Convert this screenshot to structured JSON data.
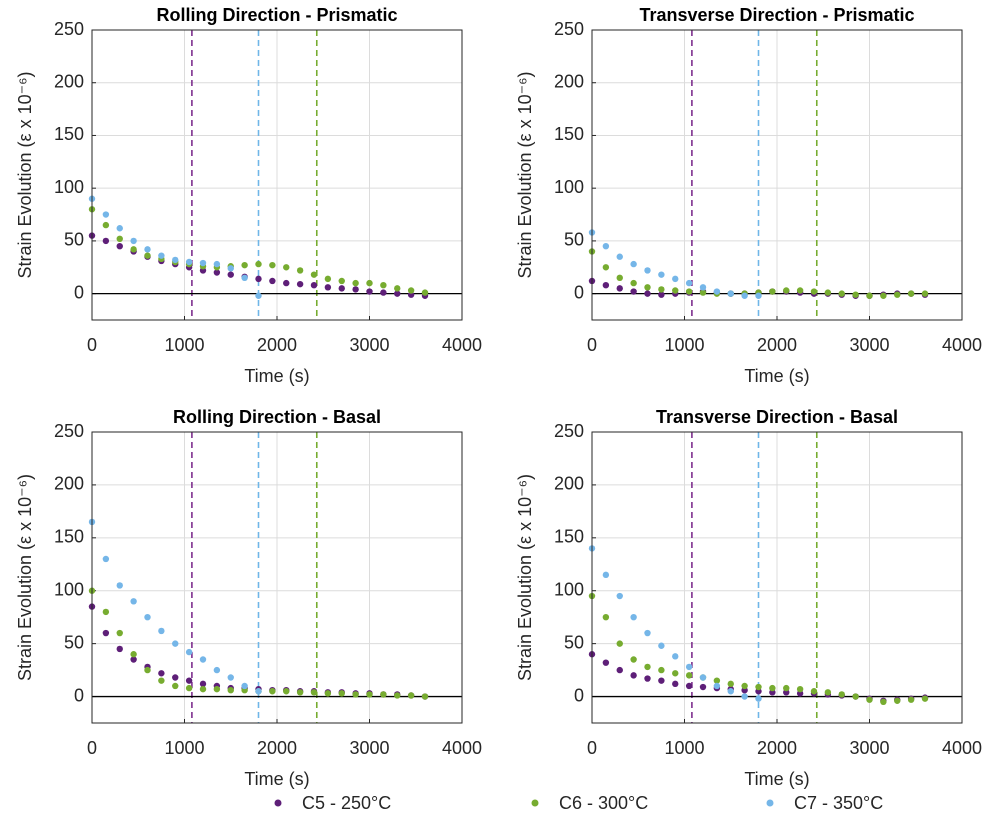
{
  "chart_data": [
    {
      "type": "scatter",
      "title": "Rolling Direction - Prismatic",
      "xlabel": "Time (s)",
      "ylabel": "Strain Evolution (ε x 10⁻⁶)",
      "xlim": [
        0,
        4000
      ],
      "xticks": [
        0,
        1000,
        2000,
        3000,
        4000
      ],
      "ylim": [
        -25,
        250
      ],
      "yticks": [
        0,
        50,
        100,
        150,
        200,
        250
      ],
      "grid": true,
      "hline": 0,
      "vlines": [
        {
          "x": 1080,
          "color": "#7e2f8e"
        },
        {
          "x": 1800,
          "color": "#6fb6e8"
        },
        {
          "x": 2430,
          "color": "#77ac30"
        }
      ],
      "series": [
        {
          "color": "#5e1f78",
          "x": [
            0,
            150,
            300,
            450,
            600,
            750,
            900,
            1050,
            1200,
            1350,
            1500,
            1650,
            1800,
            1950,
            2100,
            2250,
            2400,
            2550,
            2700,
            2850,
            3000,
            3150,
            3300,
            3450,
            3600
          ],
          "values": [
            55,
            50,
            45,
            40,
            35,
            31,
            28,
            25,
            22,
            20,
            18,
            16,
            14,
            12,
            10,
            9,
            8,
            6,
            5,
            4,
            2,
            1,
            0,
            -1,
            -2
          ]
        },
        {
          "color": "#77ac30",
          "x": [
            0,
            150,
            300,
            450,
            600,
            750,
            900,
            1050,
            1200,
            1350,
            1500,
            1650,
            1800,
            1950,
            2100,
            2250,
            2400,
            2550,
            2700,
            2850,
            3000,
            3150,
            3300,
            3450,
            3600
          ],
          "values": [
            80,
            65,
            52,
            42,
            36,
            33,
            30,
            28,
            26,
            25,
            26,
            27,
            28,
            27,
            25,
            22,
            18,
            14,
            12,
            10,
            10,
            8,
            5,
            3,
            1
          ]
        },
        {
          "color": "#75b6e8",
          "x": [
            0,
            150,
            300,
            450,
            600,
            750,
            900,
            1050,
            1200,
            1350,
            1500,
            1650,
            1800
          ],
          "values": [
            90,
            75,
            62,
            50,
            42,
            36,
            32,
            30,
            29,
            28,
            24,
            15,
            -2
          ]
        }
      ]
    },
    {
      "type": "scatter",
      "title": "Transverse Direction - Prismatic",
      "xlabel": "Time (s)",
      "ylabel": "Strain Evolution (ε x 10⁻⁶)",
      "xlim": [
        0,
        4000
      ],
      "xticks": [
        0,
        1000,
        2000,
        3000,
        4000
      ],
      "ylim": [
        -25,
        250
      ],
      "yticks": [
        0,
        50,
        100,
        150,
        200,
        250
      ],
      "grid": true,
      "hline": 0,
      "vlines": [
        {
          "x": 1080,
          "color": "#7e2f8e"
        },
        {
          "x": 1800,
          "color": "#6fb6e8"
        },
        {
          "x": 2430,
          "color": "#77ac30"
        }
      ],
      "series": [
        {
          "color": "#5e1f78",
          "x": [
            0,
            150,
            300,
            450,
            600,
            750,
            900,
            1050,
            1200,
            1350,
            1500,
            1650,
            1800,
            1950,
            2100,
            2250,
            2400,
            2550,
            2700,
            2850,
            3000,
            3150,
            3300,
            3450,
            3600
          ],
          "values": [
            12,
            8,
            5,
            2,
            0,
            -1,
            0,
            1,
            2,
            1,
            0,
            0,
            1,
            2,
            2,
            1,
            0,
            0,
            -1,
            -2,
            -2,
            -1,
            0,
            0,
            -1
          ]
        },
        {
          "color": "#77ac30",
          "x": [
            0,
            150,
            300,
            450,
            600,
            750,
            900,
            1050,
            1200,
            1350,
            1500,
            1650,
            1800,
            1950,
            2100,
            2250,
            2400,
            2550,
            2700,
            2850,
            3000,
            3150,
            3300,
            3450,
            3600
          ],
          "values": [
            40,
            25,
            15,
            10,
            6,
            4,
            3,
            2,
            1,
            0,
            0,
            0,
            1,
            2,
            3,
            3,
            2,
            1,
            0,
            -1,
            -2,
            -2,
            -1,
            0,
            0
          ]
        },
        {
          "color": "#75b6e8",
          "x": [
            0,
            150,
            300,
            450,
            600,
            750,
            900,
            1050,
            1200,
            1350,
            1500,
            1650,
            1800
          ],
          "values": [
            58,
            45,
            35,
            28,
            22,
            18,
            14,
            10,
            6,
            2,
            0,
            -2,
            -2
          ]
        }
      ]
    },
    {
      "type": "scatter",
      "title": "Rolling Direction - Basal",
      "xlabel": "Time (s)",
      "ylabel": "Strain Evolution (ε x 10⁻⁶)",
      "xlim": [
        0,
        4000
      ],
      "xticks": [
        0,
        1000,
        2000,
        3000,
        4000
      ],
      "ylim": [
        -25,
        250
      ],
      "yticks": [
        0,
        50,
        100,
        150,
        200,
        250
      ],
      "grid": true,
      "hline": 0,
      "vlines": [
        {
          "x": 1080,
          "color": "#7e2f8e"
        },
        {
          "x": 1800,
          "color": "#6fb6e8"
        },
        {
          "x": 2430,
          "color": "#77ac30"
        }
      ],
      "series": [
        {
          "color": "#5e1f78",
          "x": [
            0,
            150,
            300,
            450,
            600,
            750,
            900,
            1050,
            1200,
            1350,
            1500,
            1650,
            1800,
            1950,
            2100,
            2250,
            2400,
            2550,
            2700,
            2850,
            3000,
            3150,
            3300,
            3450,
            3600
          ],
          "values": [
            85,
            60,
            45,
            35,
            28,
            22,
            18,
            15,
            12,
            10,
            8,
            8,
            7,
            6,
            6,
            5,
            5,
            4,
            4,
            3,
            3,
            2,
            2,
            1,
            0
          ]
        },
        {
          "color": "#77ac30",
          "x": [
            0,
            150,
            300,
            450,
            600,
            750,
            900,
            1050,
            1200,
            1350,
            1500,
            1650,
            1800,
            1950,
            2100,
            2250,
            2400,
            2550,
            2700,
            2850,
            3000,
            3150,
            3300,
            3450,
            3600
          ],
          "values": [
            100,
            80,
            60,
            40,
            25,
            15,
            10,
            8,
            7,
            7,
            6,
            6,
            5,
            5,
            5,
            4,
            4,
            3,
            3,
            2,
            2,
            2,
            1,
            1,
            0
          ]
        },
        {
          "color": "#75b6e8",
          "x": [
            0,
            150,
            300,
            450,
            600,
            750,
            900,
            1050,
            1200,
            1350,
            1500,
            1650,
            1800
          ],
          "values": [
            165,
            130,
            105,
            90,
            75,
            62,
            50,
            42,
            35,
            25,
            18,
            10,
            5
          ]
        }
      ]
    },
    {
      "type": "scatter",
      "title": "Transverse Direction - Basal",
      "xlabel": "Time (s)",
      "ylabel": "Strain Evolution (ε x 10⁻⁶)",
      "xlim": [
        0,
        4000
      ],
      "xticks": [
        0,
        1000,
        2000,
        3000,
        4000
      ],
      "ylim": [
        -25,
        250
      ],
      "yticks": [
        0,
        50,
        100,
        150,
        200,
        250
      ],
      "grid": true,
      "hline": 0,
      "vlines": [
        {
          "x": 1080,
          "color": "#7e2f8e"
        },
        {
          "x": 1800,
          "color": "#6fb6e8"
        },
        {
          "x": 2430,
          "color": "#77ac30"
        }
      ],
      "series": [
        {
          "color": "#5e1f78",
          "x": [
            0,
            150,
            300,
            450,
            600,
            750,
            900,
            1050,
            1200,
            1350,
            1500,
            1650,
            1800,
            1950,
            2100,
            2250,
            2400,
            2550,
            2700,
            2850,
            3000,
            3150,
            3300,
            3450,
            3600
          ],
          "values": [
            40,
            32,
            25,
            20,
            17,
            15,
            12,
            10,
            9,
            8,
            7,
            6,
            5,
            4,
            4,
            3,
            3,
            2,
            1,
            0,
            -2,
            -4,
            -3,
            -2,
            -1
          ]
        },
        {
          "color": "#77ac30",
          "x": [
            0,
            150,
            300,
            450,
            600,
            750,
            900,
            1050,
            1200,
            1350,
            1500,
            1650,
            1800,
            1950,
            2100,
            2250,
            2400,
            2550,
            2700,
            2850,
            3000,
            3150,
            3300,
            3450,
            3600
          ],
          "values": [
            95,
            75,
            50,
            35,
            28,
            25,
            22,
            20,
            18,
            15,
            12,
            10,
            9,
            8,
            8,
            7,
            5,
            4,
            2,
            0,
            -3,
            -5,
            -4,
            -3,
            -2
          ]
        },
        {
          "color": "#75b6e8",
          "x": [
            0,
            150,
            300,
            450,
            600,
            750,
            900,
            1050,
            1200,
            1350,
            1500,
            1650,
            1800
          ],
          "values": [
            140,
            115,
            95,
            75,
            60,
            48,
            38,
            28,
            18,
            10,
            5,
            0,
            -2
          ]
        }
      ]
    }
  ],
  "legend": {
    "entries": [
      {
        "name": "C5 - 250°C",
        "color": "#5e1f78"
      },
      {
        "name": "C6 - 300°C",
        "color": "#77ac30"
      },
      {
        "name": "C7 - 350°C",
        "color": "#75b6e8"
      }
    ]
  }
}
